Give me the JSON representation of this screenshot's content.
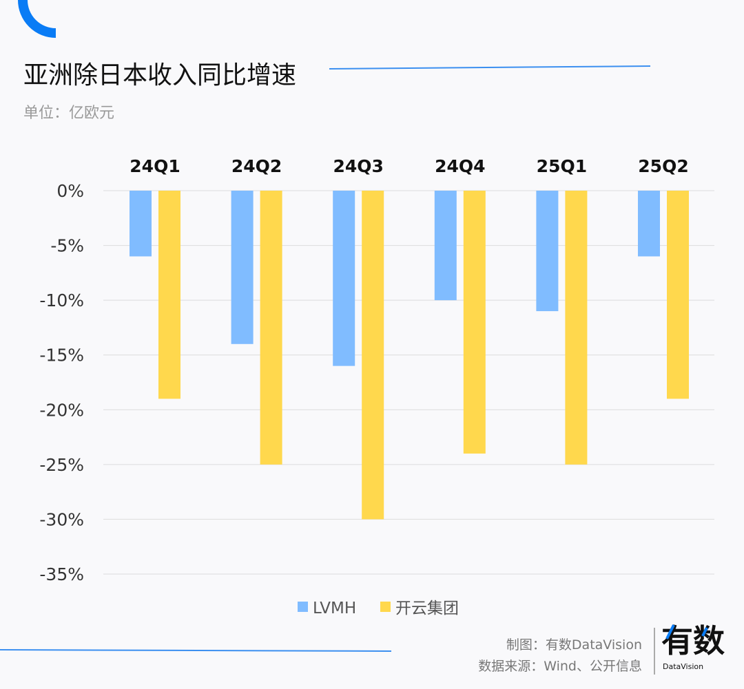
{
  "title": "亚洲除日本收入同比增速",
  "unit": "单位：亿欧元",
  "footer": {
    "made_by": "制图：有数DataVision",
    "source": "数据来源：Wind、公开信息",
    "logo_text": "有数",
    "logo_sub": "DataVision"
  },
  "colors": {
    "accent": "#0a7cf5",
    "lvmh": "#80bcff",
    "kering": "#ffd84d"
  },
  "chart_data": {
    "type": "bar",
    "title": "亚洲除日本收入同比增速",
    "categories": [
      "24Q1",
      "24Q2",
      "24Q3",
      "24Q4",
      "25Q1",
      "25Q2"
    ],
    "series": [
      {
        "name": "LVMH",
        "values": [
          -6,
          -14,
          -16,
          -10,
          -11,
          -6
        ]
      },
      {
        "name": "开云集团",
        "values": [
          -19,
          -25,
          -30,
          -24,
          -25,
          -19
        ]
      }
    ],
    "yticks": [
      "0%",
      "-5%",
      "-10%",
      "-15%",
      "-20%",
      "-25%",
      "-30%",
      "-35%"
    ],
    "ylim": [
      -35,
      0
    ],
    "grid": true,
    "legend": "bottom",
    "category_labels_position": "top"
  }
}
